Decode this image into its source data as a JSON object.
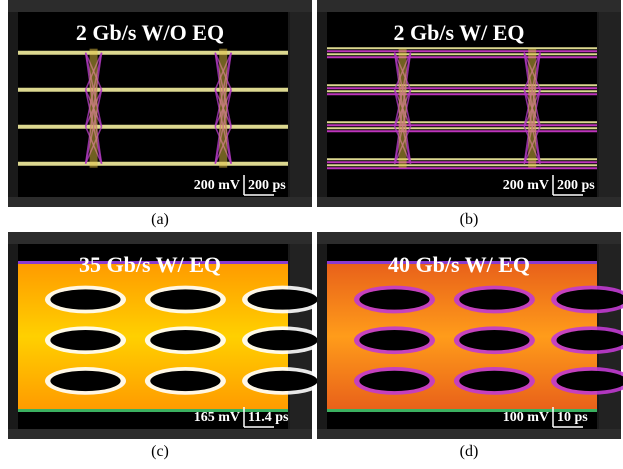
{
  "panels": [
    {
      "title": "2 Gb/s W/O EQ",
      "v_scale": "200 mV",
      "t_scale": "200 ps",
      "caption": "(a)"
    },
    {
      "title": "2 Gb/s W/ EQ",
      "v_scale": "200 mV",
      "t_scale": "200 ps",
      "caption": "(b)"
    },
    {
      "title": "35 Gb/s W/ EQ",
      "v_scale": "165 mV",
      "t_scale": "11.4 ps",
      "caption": "(c)"
    },
    {
      "title": "40 Gb/s W/ EQ",
      "v_scale": "100 mV",
      "t_scale": "10 ps",
      "caption": "(d)"
    }
  ]
}
